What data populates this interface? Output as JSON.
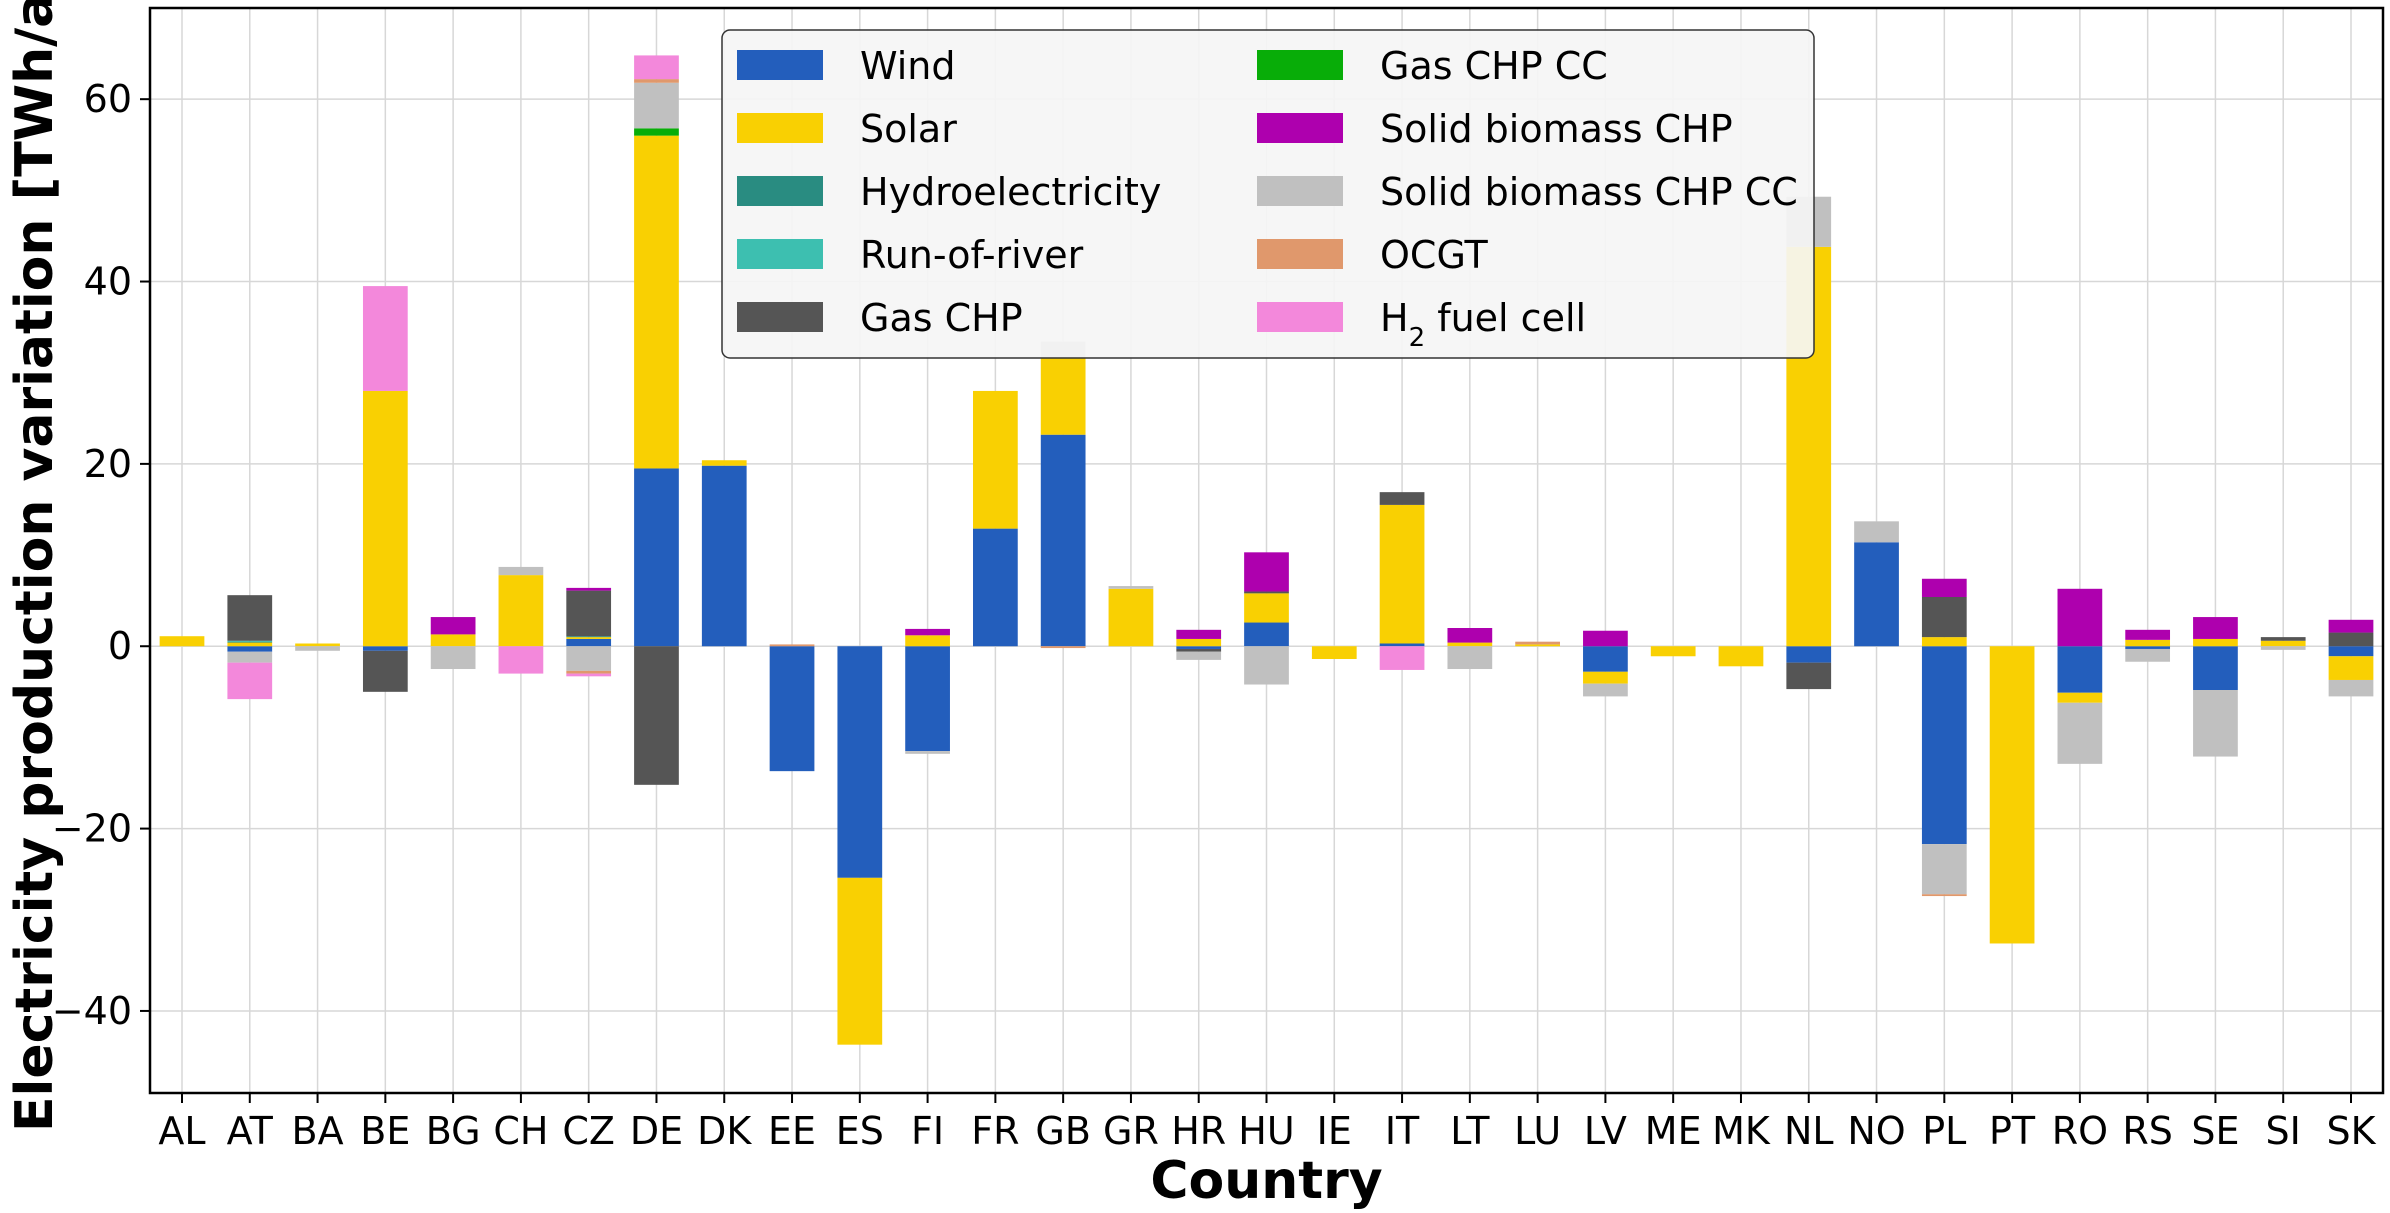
{
  "chart_data": {
    "type": "bar",
    "stacked": true,
    "title": "",
    "xlabel": "Country",
    "ylabel": "Electricity production variation [TWh/a]",
    "ylim": [
      -49,
      70
    ],
    "yticks": [
      -40,
      -20,
      0,
      20,
      40,
      60
    ],
    "grid": true,
    "legend_position": "top-center",
    "legend_columns": 2,
    "categories": [
      "AL",
      "AT",
      "BA",
      "BE",
      "BG",
      "CH",
      "CZ",
      "DE",
      "DK",
      "EE",
      "ES",
      "FI",
      "FR",
      "GB",
      "GR",
      "HR",
      "HU",
      "IE",
      "IT",
      "LT",
      "LU",
      "LV",
      "ME",
      "MK",
      "NL",
      "NO",
      "PL",
      "PT",
      "RO",
      "RS",
      "SE",
      "SI",
      "SK"
    ],
    "series": [
      {
        "name": "Wind",
        "color": "#235ebc",
        "values": [
          0,
          -0.6,
          0,
          -0.5,
          0,
          0,
          0.8,
          19.5,
          19.8,
          -13.7,
          -25.4,
          -11.5,
          12.9,
          23.2,
          0,
          -0.3,
          2.6,
          0,
          0.3,
          0,
          0,
          -2.8,
          0,
          0,
          -1.8,
          11.4,
          -21.7,
          0,
          -5.1,
          -0.3,
          -4.8,
          0,
          -1.1
        ]
      },
      {
        "name": "Solar",
        "color": "#f9d002",
        "values": [
          1.1,
          0.4,
          0.3,
          28.0,
          1.3,
          7.8,
          0.2,
          36.5,
          0.6,
          0,
          -18.3,
          1.2,
          15.1,
          8.5,
          6.3,
          0.8,
          3.2,
          -1.4,
          15.2,
          0.4,
          0.2,
          -1.3,
          -1.1,
          -2.2,
          43.8,
          0,
          1.0,
          -32.6,
          -1.1,
          0.7,
          0.8,
          0.6,
          -2.6
        ]
      },
      {
        "name": "Hydroelectricity",
        "color": "#298c81",
        "values": [
          0,
          0.1,
          0,
          0,
          0,
          0,
          0.1,
          0,
          0,
          0,
          0,
          0,
          0,
          0,
          0,
          0,
          0,
          0,
          0,
          0,
          0,
          0,
          0,
          0,
          0,
          0,
          0,
          0,
          0,
          0,
          0,
          0,
          0
        ]
      },
      {
        "name": "Run-of-river",
        "color": "#3dbfb0",
        "values": [
          0,
          0.1,
          0,
          0,
          0,
          0,
          0,
          0,
          0,
          0,
          0,
          0,
          0,
          0,
          0,
          0,
          0,
          0,
          0,
          0,
          0,
          0,
          0,
          0,
          0,
          0,
          0,
          0,
          0,
          0,
          0,
          0,
          0
        ]
      },
      {
        "name": "Gas CHP",
        "color": "#555555",
        "values": [
          0,
          5.0,
          0,
          -4.5,
          0,
          0,
          5.0,
          -15.2,
          0,
          0,
          0,
          0,
          0,
          0,
          0,
          -0.3,
          0.2,
          0,
          1.4,
          0,
          0,
          0,
          0,
          0,
          -2.9,
          0,
          4.4,
          0,
          0,
          0,
          0,
          0.4,
          1.5
        ]
      },
      {
        "name": "Gas CHP CC",
        "color": "#08ad08",
        "values": [
          0,
          0,
          0,
          0,
          0,
          0,
          0,
          0.8,
          0,
          0,
          0,
          0,
          0,
          0,
          0,
          0,
          0,
          0,
          0,
          0,
          0,
          0,
          0,
          0,
          0,
          0,
          0,
          0,
          0,
          0,
          0,
          0,
          0
        ]
      },
      {
        "name": "Solid biomass CHP",
        "color": "#ae00ae",
        "values": [
          0,
          0,
          0,
          0,
          1.9,
          0,
          0.3,
          0,
          0,
          0,
          0,
          0.7,
          0,
          0,
          0,
          1.0,
          4.3,
          0,
          0,
          1.6,
          0,
          1.7,
          0,
          0,
          0,
          0,
          2.0,
          0,
          6.3,
          1.1,
          2.4,
          0,
          1.4
        ]
      },
      {
        "name": "Solid biomass CHP CC",
        "color": "#c0c0c0",
        "values": [
          0,
          -1.2,
          -0.5,
          0,
          -2.5,
          0.9,
          -2.7,
          5.0,
          0,
          0,
          0,
          -0.3,
          0,
          1.7,
          0.3,
          -0.9,
          -4.2,
          0,
          0,
          -2.5,
          0,
          -1.4,
          0,
          0,
          5.5,
          2.3,
          -5.5,
          0,
          -6.7,
          -1.4,
          -7.3,
          -0.4,
          -1.8
        ]
      },
      {
        "name": "OCGT",
        "color": "#e0986c",
        "values": [
          0,
          0,
          0,
          0,
          0,
          0,
          -0.3,
          0.4,
          0,
          0.2,
          0,
          0,
          0,
          -0.2,
          0,
          0,
          0,
          0,
          0,
          0,
          0.3,
          0,
          0,
          0,
          0,
          0,
          -0.2,
          0,
          0,
          0,
          0,
          0,
          0
        ]
      },
      {
        "name": "H$_2$ fuel cell",
        "color": "#f388db",
        "values": [
          0,
          -4.0,
          0,
          11.5,
          0,
          -3.0,
          -0.3,
          2.6,
          0,
          0,
          0,
          0,
          0,
          0,
          0,
          0,
          0,
          0,
          -2.6,
          0,
          0,
          0,
          0,
          0,
          0,
          0,
          0,
          0,
          0,
          0,
          0,
          0,
          0
        ]
      }
    ]
  }
}
